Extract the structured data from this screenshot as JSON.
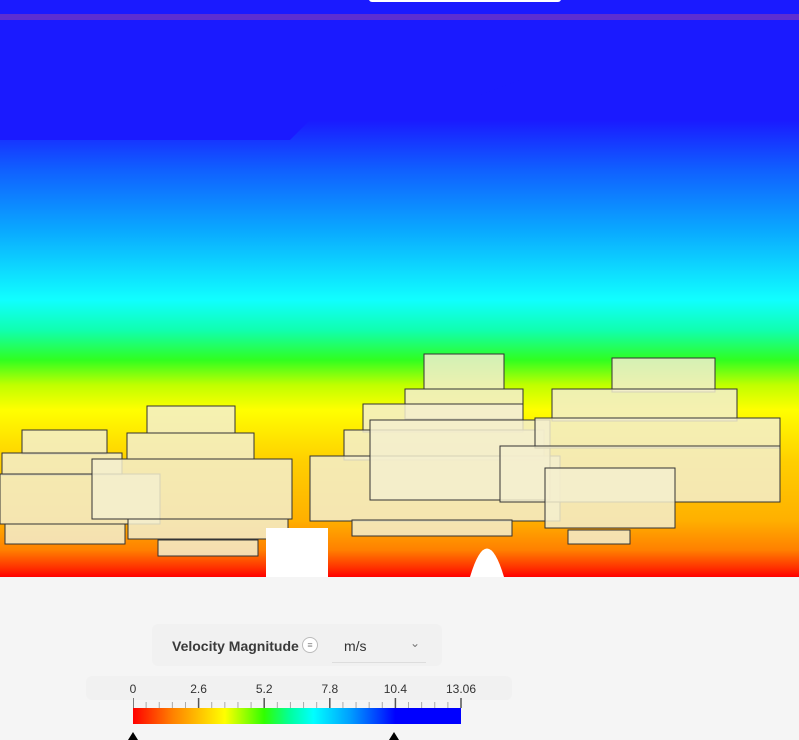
{
  "legend": {
    "title": "Velocity Magnitude",
    "info_icon": "list-icon",
    "unit": "m/s",
    "dropdown_icon": "chevron-down-icon",
    "tick_labels": [
      "0",
      "2.6",
      "5.2",
      "7.8",
      "10.4",
      "13.06"
    ],
    "min": 0,
    "max": 13.06,
    "colormap": [
      "#ff0000",
      "#ff8000",
      "#ffff00",
      "#30ff00",
      "#00ffff",
      "#00a0ff",
      "#0000ff"
    ],
    "range_markers": [
      0,
      10.4
    ]
  },
  "viewport": {
    "background_top": "#1a1aff",
    "ground": "#f5f5f5"
  }
}
